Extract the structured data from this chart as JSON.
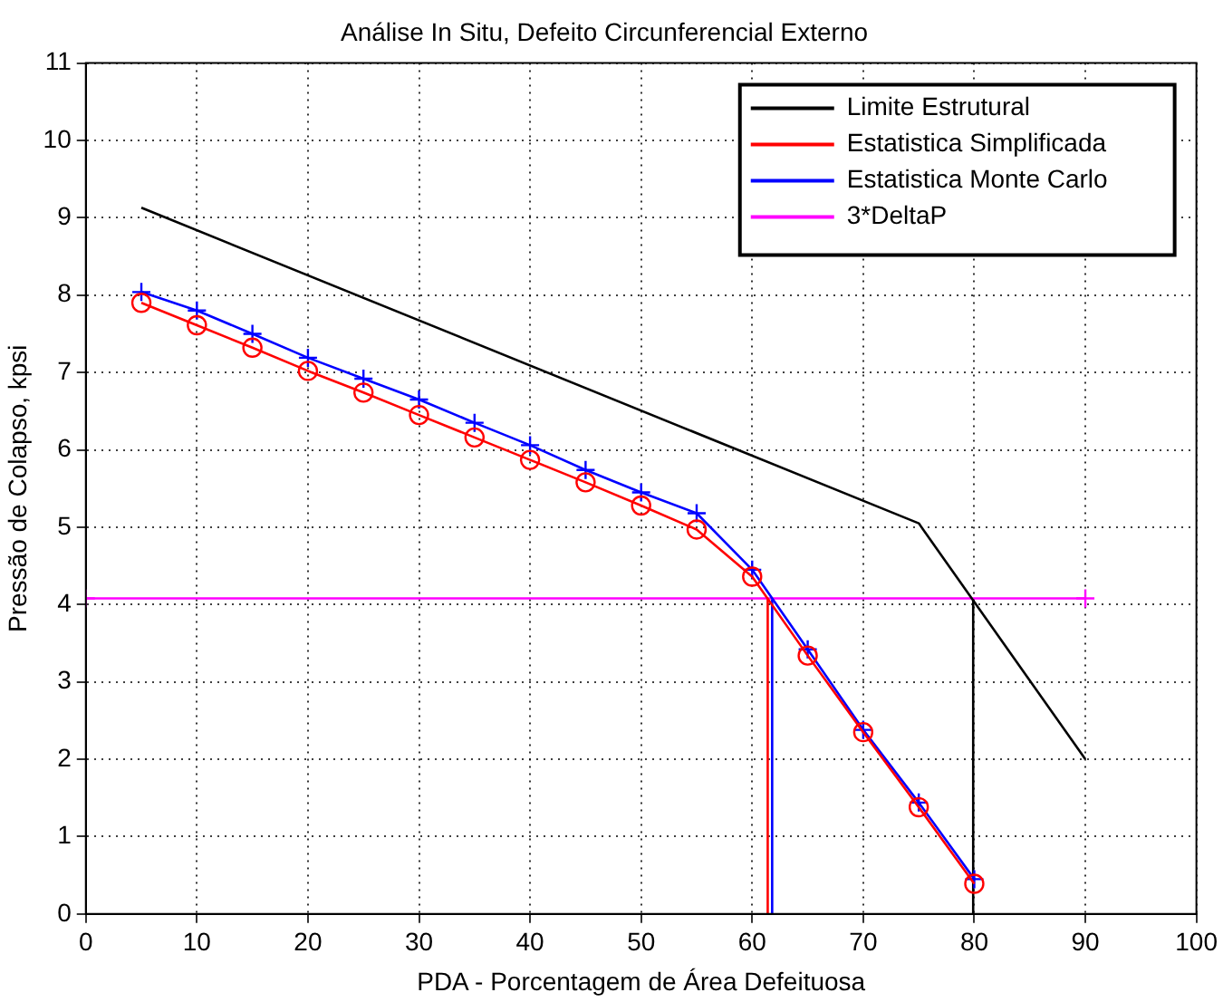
{
  "chart_data": {
    "type": "line",
    "title": "Análise In Situ, Defeito Circunferencial Externo",
    "xlabel": "PDA - Porcentagem de Área Defeituosa",
    "ylabel": "Pressão de Colapso, kpsi",
    "xlim": [
      0,
      100
    ],
    "xticks": [
      0,
      10,
      20,
      30,
      40,
      50,
      60,
      70,
      80,
      90,
      100
    ],
    "ylim": [
      0,
      11
    ],
    "yticks": [
      0,
      1,
      2,
      3,
      4,
      5,
      6,
      7,
      8,
      9,
      10,
      11
    ],
    "grid": true,
    "legend": "top right",
    "series": [
      {
        "type": "line",
        "name": "Limite Estrutural",
        "color": "#000000",
        "marker": "none",
        "x": [
          5,
          75,
          90
        ],
        "values": [
          9.13,
          5.05,
          2.0
        ]
      },
      {
        "type": "line",
        "name": "Estatistica Simplificada",
        "color": "#ff0000",
        "marker": "circle",
        "x": [
          5,
          10,
          15,
          20,
          25,
          30,
          35,
          40,
          45,
          50,
          55,
          60,
          65,
          70,
          75,
          80
        ],
        "values": [
          7.9,
          7.61,
          7.32,
          7.02,
          6.74,
          6.45,
          6.16,
          5.87,
          5.58,
          5.28,
          4.97,
          4.36,
          3.34,
          2.35,
          1.38,
          0.39
        ]
      },
      {
        "type": "line",
        "name": "Estatistica Monte Carlo",
        "color": "#0000ff",
        "marker": "cross",
        "x": [
          5,
          10,
          15,
          20,
          25,
          30,
          35,
          40,
          45,
          50,
          55,
          60,
          65,
          70,
          75,
          80
        ],
        "values": [
          8.04,
          7.8,
          7.5,
          7.19,
          6.92,
          6.65,
          6.35,
          6.06,
          5.74,
          5.45,
          5.18,
          4.45,
          3.42,
          2.38,
          1.44,
          0.45
        ]
      },
      {
        "type": "line",
        "name": "3*DeltaP",
        "color": "#ff00ff",
        "marker": "cross",
        "x": [
          0,
          90
        ],
        "values": [
          4.08,
          4.08
        ]
      },
      {
        "type": "line",
        "color": "#ff0000",
        "marker": "none",
        "x": [
          61.4,
          61.4
        ],
        "values": [
          0,
          4.08
        ]
      },
      {
        "type": "line",
        "color": "#0000ff",
        "marker": "none",
        "x": [
          61.8,
          61.8
        ],
        "values": [
          0,
          4.08
        ]
      },
      {
        "type": "line",
        "color": "#000000",
        "marker": "none",
        "x": [
          79.9,
          79.9
        ],
        "values": [
          0,
          4.08
        ]
      }
    ]
  }
}
